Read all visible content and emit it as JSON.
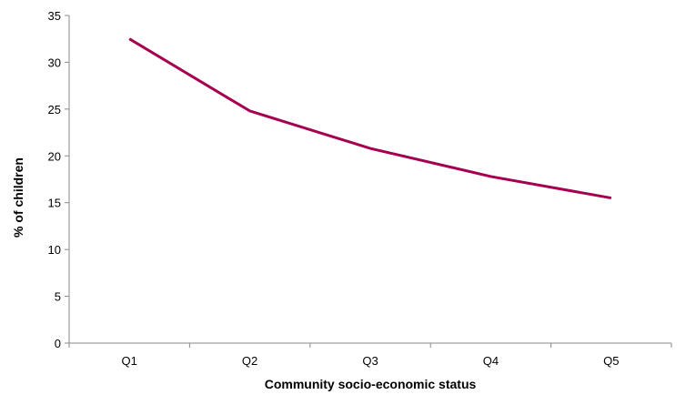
{
  "chart_data": {
    "type": "line",
    "title": "",
    "xlabel": "Community socio-economic status",
    "ylabel": "% of children",
    "categories": [
      "Q1",
      "Q2",
      "Q3",
      "Q4",
      "Q5"
    ],
    "series": [
      {
        "name": "% of children",
        "values": [
          32.5,
          24.8,
          20.8,
          17.8,
          15.5
        ],
        "color": "#a50050"
      }
    ],
    "ylim": [
      0,
      35
    ],
    "yticks": [
      "0",
      "5",
      "10",
      "15",
      "20",
      "25",
      "30",
      "35"
    ],
    "grid": false,
    "legend": "none"
  }
}
